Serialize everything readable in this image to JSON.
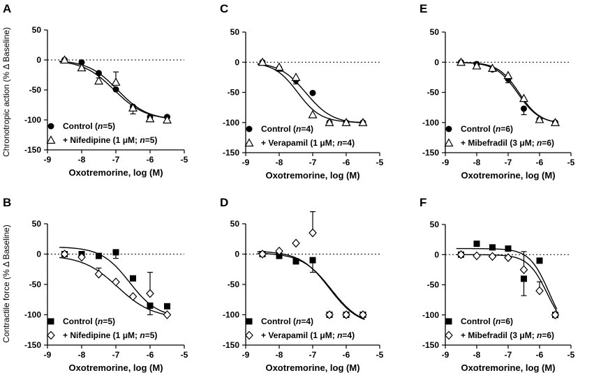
{
  "figure": {
    "shared_ylabel_top": "Chronotropic action (% Δ Baseline)",
    "shared_ylabel_bottom": "Contractile force (% Δ Baseline)"
  },
  "chart_data": [
    {
      "id": "A",
      "type": "scatter",
      "panel_letter": "A",
      "xlabel": "Oxotremorine, log (M)",
      "xlim": [
        -9,
        -5
      ],
      "ylim": [
        -150,
        50
      ],
      "xticks": [
        "-9",
        "-8",
        "-7",
        "-6",
        "-5"
      ],
      "yticks": [
        "50",
        "0",
        "-50",
        "-100",
        "-150"
      ],
      "zero_line": "dotted",
      "series": [
        {
          "name": "Control",
          "legend_prefix": "Control (",
          "legend_n": "n",
          "legend_suffix": "=5)",
          "marker": "filled-circle",
          "x": [
            -8.5,
            -8,
            -7.5,
            -7,
            -6.5,
            -6,
            -5.5
          ],
          "y": [
            0,
            -4,
            -22,
            -49,
            -78,
            -95,
            -95
          ],
          "err": [
            0,
            0,
            0,
            0,
            12,
            0,
            0
          ],
          "fit": {
            "top": 0,
            "bottom": -100,
            "logEC50": -6.95,
            "hill": 1.0
          }
        },
        {
          "name": "+ Nifedipine",
          "legend_prefix": "+ Nifedipine (1 ",
          "legend_mu": "μ",
          "legend_n": "n",
          "legend_suffix": "M; ",
          "legend_end": "=5)",
          "marker": "open-triangle",
          "x": [
            -8.5,
            -8,
            -7.5,
            -7,
            -6.5,
            -6,
            -5.5
          ],
          "y": [
            0,
            -13,
            -35,
            -37,
            -80,
            -98,
            -100
          ],
          "err": [
            0,
            0,
            5,
            17,
            0,
            0,
            0
          ],
          "fit": {
            "top": 0,
            "bottom": -100,
            "logEC50": -7.05,
            "hill": 0.95
          }
        }
      ]
    },
    {
      "id": "C",
      "type": "scatter",
      "panel_letter": "C",
      "xlabel": "Oxotremorine, log (M)",
      "xlim": [
        -9,
        -5
      ],
      "ylim": [
        -150,
        50
      ],
      "xticks": [
        "-9",
        "-8",
        "-7",
        "-6",
        "-5"
      ],
      "yticks": [
        "50",
        "0",
        "-50",
        "-100",
        "-150"
      ],
      "zero_line": "dotted",
      "series": [
        {
          "name": "Control",
          "legend_prefix": "Control (",
          "legend_n": "n",
          "legend_suffix": "=4)",
          "marker": "filled-circle",
          "x": [
            -8.5,
            -8,
            -7.5,
            -7,
            -6.5,
            -6,
            -5.5
          ],
          "y": [
            0,
            -10,
            -30,
            -51,
            -100,
            -100,
            -100
          ],
          "err": [
            0,
            5,
            6,
            0,
            0,
            0,
            0
          ],
          "fit": {
            "top": 0,
            "bottom": -102,
            "logEC50": -7.2,
            "hill": 1.1
          }
        },
        {
          "name": "+ Verapamil",
          "legend_prefix": "+ Verapamil (1 ",
          "legend_mu": "μ",
          "legend_n": "n",
          "legend_suffix": "M; ",
          "legend_end": "=4)",
          "marker": "open-triangle",
          "x": [
            -8.5,
            -8,
            -7.5,
            -7,
            -6.5,
            -6,
            -5.5
          ],
          "y": [
            0,
            -8,
            -25,
            -87,
            -100,
            -100,
            -100
          ],
          "err": [
            0,
            0,
            0,
            0,
            0,
            0,
            0
          ],
          "fit": {
            "top": 0,
            "bottom": -100,
            "logEC50": -7.45,
            "hill": 1.25
          }
        }
      ]
    },
    {
      "id": "E",
      "type": "scatter",
      "panel_letter": "E",
      "xlabel": "Oxotremorine, log (M)",
      "xlim": [
        -9,
        -5
      ],
      "ylim": [
        -150,
        50
      ],
      "xticks": [
        "-9",
        "-8",
        "-7",
        "-6",
        "-5"
      ],
      "yticks": [
        "50",
        "0",
        "-50",
        "-100",
        "-150"
      ],
      "zero_line": "dotted",
      "series": [
        {
          "name": "Control",
          "legend_prefix": "Control (",
          "legend_n": "n",
          "legend_suffix": "=6)",
          "marker": "filled-circle",
          "x": [
            -8.5,
            -8,
            -7.5,
            -7,
            -6.5,
            -6,
            -5.5
          ],
          "y": [
            0,
            -3,
            -12,
            -28,
            -77,
            -95,
            -100
          ],
          "err": [
            0,
            0,
            0,
            6,
            10,
            0,
            0
          ],
          "fit": {
            "top": 0,
            "bottom": -102,
            "logEC50": -6.7,
            "hill": 1.25
          }
        },
        {
          "name": "+ Mibefradil",
          "legend_prefix": "+ Mibefradil (3 ",
          "legend_mu": "μ",
          "legend_n": "n",
          "legend_suffix": "M; ",
          "legend_end": "=6)",
          "marker": "open-triangle",
          "x": [
            -8.5,
            -8,
            -7.5,
            -7,
            -6.5,
            -6,
            -5.5
          ],
          "y": [
            0,
            -6,
            -10,
            -22,
            -60,
            -95,
            -100
          ],
          "err": [
            0,
            0,
            0,
            0,
            0,
            0,
            0
          ],
          "fit": {
            "top": 0,
            "bottom": -102,
            "logEC50": -6.65,
            "hill": 1.3
          }
        }
      ]
    },
    {
      "id": "B",
      "type": "scatter",
      "panel_letter": "B",
      "xlabel": "Oxotremorine, log (M)",
      "xlim": [
        -9,
        -5
      ],
      "ylim": [
        -150,
        50
      ],
      "xticks": [
        "-9",
        "-8",
        "-7",
        "-6",
        "-5"
      ],
      "yticks": [
        "50",
        "0",
        "-50",
        "-100",
        "-150"
      ],
      "zero_line": "dotted",
      "series": [
        {
          "name": "Control",
          "legend_prefix": "Control (",
          "legend_n": "n",
          "legend_suffix": "=5)",
          "marker": "filled-square",
          "x": [
            -8.5,
            -8,
            -7.5,
            -7,
            -6.5,
            -6,
            -5.5
          ],
          "y": [
            0,
            0,
            -3,
            3,
            -40,
            -85,
            -86
          ],
          "err": [
            0,
            0,
            0,
            10,
            0,
            15,
            0
          ],
          "fit": {
            "top": 12,
            "bottom": -105,
            "logEC50": -6.6,
            "hill": 1.05
          }
        },
        {
          "name": "+ Nifedipine",
          "legend_prefix": "+ Nifedipine (1 ",
          "legend_mu": "μ",
          "legend_n": "n",
          "legend_suffix": "M; ",
          "legend_end": "=5)",
          "marker": "open-diamond",
          "x": [
            -8.5,
            -8,
            -7.5,
            -7,
            -6.5,
            -6,
            -5.5
          ],
          "y": [
            0,
            -5,
            -33,
            -46,
            -70,
            -65,
            -100
          ],
          "err": [
            0,
            0,
            10,
            0,
            0,
            35,
            0
          ],
          "fit": {
            "top": -2,
            "bottom": -106,
            "logEC50": -6.95,
            "hill": 0.85
          }
        }
      ]
    },
    {
      "id": "D",
      "type": "scatter",
      "panel_letter": "D",
      "xlabel": "Oxotremorine, log (M)",
      "xlim": [
        -9,
        -5
      ],
      "ylim": [
        -150,
        50
      ],
      "xticks": [
        "-9",
        "-8",
        "-7",
        "-6",
        "-5"
      ],
      "yticks": [
        "50",
        "0",
        "-50",
        "-100",
        "-150"
      ],
      "zero_line": "dotted",
      "series": [
        {
          "name": "Control",
          "legend_prefix": "Control (",
          "legend_n": "n",
          "legend_suffix": "=4)",
          "marker": "filled-square",
          "x": [
            -8.5,
            -8,
            -7.5,
            -7,
            -6.5,
            -6,
            -5.5
          ],
          "y": [
            0,
            -3,
            -12,
            -10,
            -100,
            -100,
            -100
          ],
          "err": [
            0,
            0,
            0,
            20,
            0,
            0,
            0
          ],
          "fit": {
            "top": 2,
            "bottom": -118,
            "logEC50": -6.45,
            "hill": 1.0
          }
        },
        {
          "name": "+ Verapamil",
          "legend_prefix": "+ Verapamil (1 ",
          "legend_mu": "μ",
          "legend_n": "n",
          "legend_suffix": "M; ",
          "legend_end": "=4)",
          "marker": "open-diamond",
          "x": [
            -8.5,
            -8,
            -7.5,
            -7,
            -6.5,
            -6,
            -5.5
          ],
          "y": [
            0,
            5,
            18,
            35,
            -100,
            -100,
            -100
          ],
          "err": [
            0,
            0,
            0,
            35,
            0,
            0,
            0
          ],
          "fit": {
            "top": 5,
            "bottom": -118,
            "logEC50": -6.5,
            "hill": 1.0
          }
        }
      ]
    },
    {
      "id": "F",
      "type": "scatter",
      "panel_letter": "F",
      "xlabel": "Oxotremorine, log (M)",
      "xlim": [
        -9,
        -5
      ],
      "ylim": [
        -150,
        50
      ],
      "xticks": [
        "-9",
        "-8",
        "-7",
        "-6",
        "-5"
      ],
      "yticks": [
        "50",
        "0",
        "-50",
        "-100",
        "-150"
      ],
      "zero_line": "dotted",
      "series": [
        {
          "name": "Control",
          "legend_prefix": "Control (",
          "legend_n": "n",
          "legend_suffix": "=6)",
          "marker": "filled-square",
          "x": [
            -8.5,
            -8,
            -7.5,
            -7,
            -6.5,
            -6,
            -5.5
          ],
          "y": [
            0,
            18,
            12,
            10,
            -40,
            -10,
            -100
          ],
          "err": [
            0,
            0,
            0,
            0,
            28,
            0,
            0
          ],
          "fit": {
            "top": 10,
            "bottom": -135,
            "logEC50": -5.7,
            "hill": 1.4
          }
        },
        {
          "name": "+ Mibefradil",
          "legend_prefix": "+ Mibefradil (3 ",
          "legend_mu": "μ",
          "legend_n": "n",
          "legend_suffix": "M; ",
          "legend_end": "=6)",
          "marker": "open-diamond",
          "x": [
            -8.5,
            -8,
            -7.5,
            -7,
            -6.5,
            -6,
            -5.5
          ],
          "y": [
            0,
            -2,
            -3,
            -5,
            -25,
            -60,
            -100
          ],
          "err": [
            0,
            0,
            0,
            0,
            30,
            15,
            0
          ],
          "fit": {
            "top": 0,
            "bottom": -130,
            "logEC50": -5.75,
            "hill": 1.4
          }
        }
      ]
    }
  ]
}
